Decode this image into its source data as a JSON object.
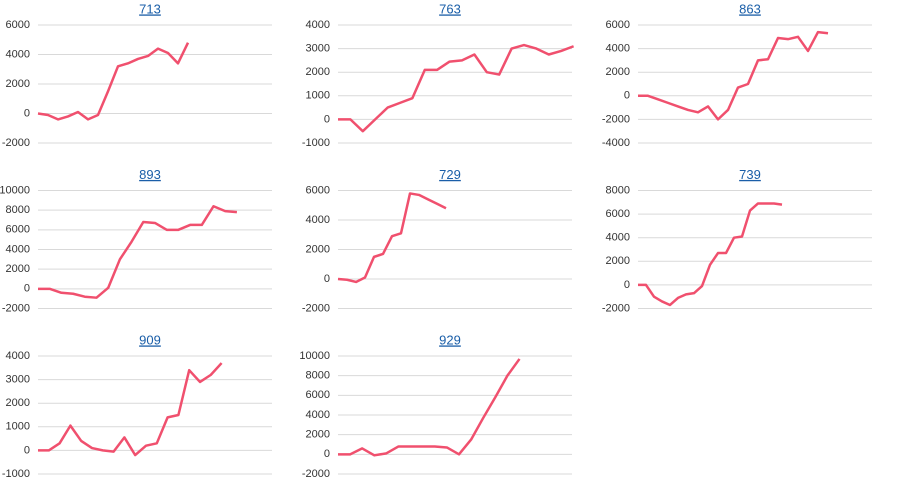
{
  "chart_data": [
    {
      "type": "line",
      "title": "713",
      "color": "#f0506e",
      "grid": true,
      "ylim": [
        -2000,
        6000
      ],
      "yticks": [
        -2000,
        0,
        2000,
        4000,
        6000
      ],
      "values": [
        0,
        -100,
        -400,
        -200,
        100,
        -400,
        -100,
        1500,
        3200,
        3400,
        3700,
        3900,
        4400,
        4100,
        3400,
        4800
      ]
    },
    {
      "type": "line",
      "title": "763",
      "color": "#f0506e",
      "grid": true,
      "ylim": [
        -1000,
        4000
      ],
      "yticks": [
        -1000,
        0,
        1000,
        2000,
        3000,
        4000
      ],
      "values": [
        0,
        0,
        -500,
        0,
        500,
        700,
        900,
        2100,
        2100,
        2450,
        2500,
        2750,
        2000,
        1900,
        3000,
        3150,
        3000,
        2750,
        2900,
        3100
      ]
    },
    {
      "type": "line",
      "title": "863",
      "color": "#f0506e",
      "grid": true,
      "ylim": [
        -4000,
        6000
      ],
      "yticks": [
        -4000,
        -2000,
        0,
        2000,
        4000,
        6000
      ],
      "values": [
        0,
        0,
        -300,
        -600,
        -900,
        -1200,
        -1400,
        -900,
        -2000,
        -1200,
        700,
        1000,
        3000,
        3100,
        4900,
        4800,
        5000,
        3800,
        5400,
        5300
      ]
    },
    {
      "type": "line",
      "title": "893",
      "color": "#f0506e",
      "grid": true,
      "ylim": [
        -2000,
        10000
      ],
      "yticks": [
        -2000,
        0,
        2000,
        4000,
        6000,
        8000,
        10000
      ],
      "values": [
        0,
        0,
        -400,
        -500,
        -800,
        -900,
        100,
        3000,
        4800,
        6800,
        6700,
        6000,
        6000,
        6500,
        6500,
        8400,
        7900,
        7800
      ]
    },
    {
      "type": "line",
      "title": "729",
      "color": "#f0506e",
      "grid": true,
      "ylim": [
        -2000,
        6000
      ],
      "yticks": [
        -2000,
        0,
        2000,
        4000,
        6000
      ],
      "values": [
        0,
        -50,
        -200,
        100,
        1500,
        1700,
        2900,
        3100,
        5800,
        5700,
        5400,
        5100,
        4800
      ]
    },
    {
      "type": "line",
      "title": "739",
      "color": "#f0506e",
      "grid": true,
      "ylim": [
        -2000,
        8000
      ],
      "yticks": [
        -2000,
        0,
        2000,
        4000,
        6000,
        8000
      ],
      "values": [
        0,
        0,
        -1000,
        -1400,
        -1700,
        -1100,
        -800,
        -700,
        -100,
        1700,
        2700,
        2700,
        4000,
        4100,
        6300,
        6900,
        6900,
        6900,
        6800
      ]
    },
    {
      "type": "line",
      "title": "909",
      "color": "#f0506e",
      "grid": true,
      "ylim": [
        -1000,
        4000
      ],
      "yticks": [
        -1000,
        0,
        1000,
        2000,
        3000,
        4000
      ],
      "values": [
        0,
        0,
        300,
        1050,
        400,
        100,
        0,
        -50,
        550,
        -200,
        200,
        300,
        1400,
        1500,
        3400,
        2900,
        3200,
        3700
      ]
    },
    {
      "type": "line",
      "title": "929",
      "color": "#f0506e",
      "grid": true,
      "ylim": [
        -2000,
        10000
      ],
      "yticks": [
        -2000,
        0,
        2000,
        4000,
        6000,
        8000,
        10000
      ],
      "values": [
        0,
        0,
        600,
        -100,
        100,
        800,
        800,
        800,
        800,
        700,
        0,
        1500,
        3700,
        5800,
        8000,
        9700
      ]
    }
  ]
}
